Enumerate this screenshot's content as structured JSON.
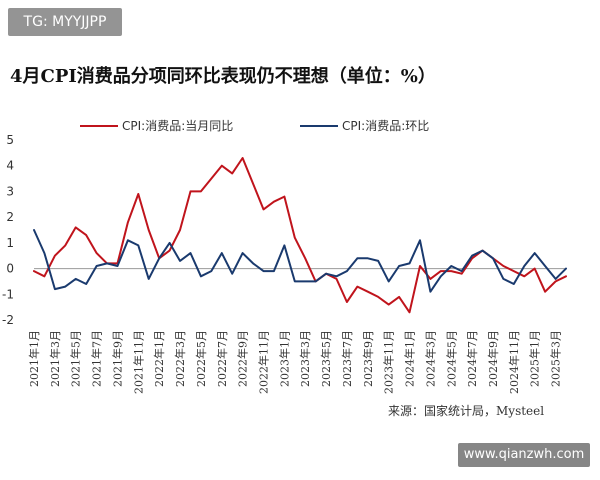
{
  "watermarks": {
    "top": "TG: MYYJJPP",
    "bottom": "www.qianzwh.com"
  },
  "chart_data": {
    "type": "line",
    "title": "4月CPI消费品分项同环比表现仍不理想（单位：%）",
    "source": "来源：国家统计局，Mysteel",
    "ylim": [
      -2,
      5
    ],
    "yticks": [
      5,
      4,
      3,
      2,
      1,
      0,
      -1,
      -2
    ],
    "x": [
      "2021年1月",
      "2021年2月",
      "2021年3月",
      "2021年4月",
      "2021年5月",
      "2021年6月",
      "2021年7月",
      "2021年8月",
      "2021年9月",
      "2021年10月",
      "2021年11月",
      "2021年12月",
      "2022年1月",
      "2022年2月",
      "2022年3月",
      "2022年4月",
      "2022年5月",
      "2022年6月",
      "2022年7月",
      "2022年8月",
      "2022年9月",
      "2022年10月",
      "2022年11月",
      "2022年12月",
      "2023年1月",
      "2023年2月",
      "2023年3月",
      "2023年4月",
      "2023年5月",
      "2023年6月",
      "2023年7月",
      "2023年8月",
      "2023年9月",
      "2023年10月",
      "2023年11月",
      "2023年12月",
      "2024年1月",
      "2024年2月",
      "2024年3月",
      "2024年4月",
      "2024年5月",
      "2024年6月",
      "2024年7月",
      "2024年8月",
      "2024年9月",
      "2024年10月",
      "2024年11月",
      "2024年12月",
      "2025年1月",
      "2025年2月",
      "2025年3月",
      "2025年4月"
    ],
    "xtick_labels": [
      "2021年1月",
      "2021年3月",
      "2021年5月",
      "2021年7月",
      "2021年9月",
      "2021年11月",
      "2022年1月",
      "2022年3月",
      "2022年5月",
      "2022年7月",
      "2022年9月",
      "2022年11月",
      "2023年1月",
      "2023年3月",
      "2023年5月",
      "2023年7月",
      "2023年9月",
      "2023年11月",
      "2024年1月",
      "2024年3月",
      "2024年5月",
      "2024年7月",
      "2024年9月",
      "2024年11月",
      "2025年1月",
      "2025年3月"
    ],
    "series": [
      {
        "name": "CPI:消费品:当月同比",
        "color": "#c0141c",
        "values": [
          -0.1,
          -0.3,
          0.5,
          0.9,
          1.6,
          1.3,
          0.6,
          0.2,
          0.2,
          1.8,
          2.9,
          1.5,
          0.4,
          0.7,
          1.5,
          3.0,
          3.0,
          3.5,
          4.0,
          3.7,
          4.3,
          3.3,
          2.3,
          2.6,
          2.8,
          1.2,
          0.4,
          -0.5,
          -0.2,
          -0.4,
          -1.3,
          -0.7,
          -0.9,
          -1.1,
          -1.4,
          -1.1,
          -1.7,
          0.1,
          -0.4,
          -0.1,
          -0.1,
          -0.2,
          0.4,
          0.7,
          0.4,
          0.1,
          -0.1,
          -0.3,
          0.0,
          -0.9,
          -0.5,
          -0.3
        ]
      },
      {
        "name": "CPI:消费品:环比",
        "color": "#1a3a6e",
        "values": [
          1.5,
          0.6,
          -0.8,
          -0.7,
          -0.4,
          -0.6,
          0.1,
          0.2,
          0.1,
          1.1,
          0.9,
          -0.4,
          0.4,
          1.0,
          0.3,
          0.6,
          -0.3,
          -0.1,
          0.6,
          -0.2,
          0.6,
          0.2,
          -0.1,
          -0.1,
          0.9,
          -0.5,
          -0.5,
          -0.5,
          -0.2,
          -0.3,
          -0.1,
          0.4,
          0.4,
          0.3,
          -0.5,
          0.1,
          0.2,
          1.1,
          -0.9,
          -0.3,
          0.1,
          -0.1,
          0.5,
          0.7,
          0.4,
          -0.4,
          -0.6,
          0.1,
          0.6,
          0.1,
          -0.4,
          0.0
        ]
      }
    ]
  }
}
